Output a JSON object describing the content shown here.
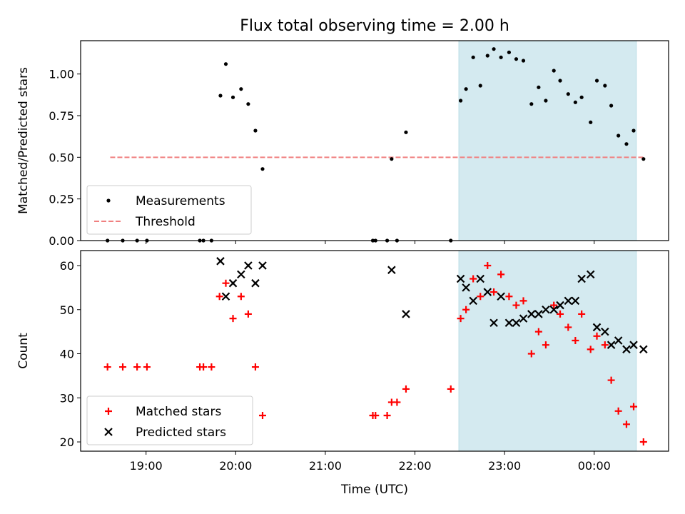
{
  "chart_data": {
    "title": "Flux total observing time = 2.00 h",
    "xlabel": "Time (UTC)",
    "x_tick_labels": [
      "19:00",
      "20:00",
      "21:00",
      "22:00",
      "23:00",
      "00:00"
    ],
    "x_tick_hours": [
      19,
      20,
      21,
      22,
      23,
      24
    ],
    "xlim_hours": [
      18.27,
      24.83
    ],
    "shaded_span_hours": [
      22.49,
      24.47
    ],
    "shade_color": "#d4eaf0",
    "panels": [
      {
        "type": "scatter",
        "ylabel": "Matched/Predicted stars",
        "ylim": [
          0.0,
          1.2
        ],
        "yticks": [
          0.0,
          0.25,
          0.5,
          0.75,
          1.0
        ],
        "ytick_labels": [
          "0.00",
          "0.25",
          "0.50",
          "0.75",
          "1.00"
        ],
        "legend": {
          "position": "lower-left",
          "measurements_label": "Measurements",
          "threshold_label": "Threshold"
        },
        "threshold": {
          "value": 0.5,
          "x_start_hours": 18.6,
          "x_end_hours": 24.55,
          "color": "#f08080"
        },
        "series": [
          {
            "name": "Measurements",
            "marker": "dot",
            "color": "#000000",
            "x_hours": [
              18.57,
              18.74,
              18.9,
              19.01,
              19.6,
              19.64,
              19.73,
              19.83,
              19.89,
              19.97,
              20.06,
              20.14,
              20.22,
              20.3,
              21.53,
              21.56,
              21.69,
              21.74,
              21.8,
              21.9,
              22.4,
              22.51,
              22.57,
              22.65,
              22.73,
              22.81,
              22.88,
              22.96,
              23.05,
              23.13,
              23.21,
              23.3,
              23.38,
              23.46,
              23.55,
              23.62,
              23.71,
              23.79,
              23.86,
              23.96,
              24.03,
              24.12,
              24.19,
              24.27,
              24.36,
              24.44,
              24.55
            ],
            "y": [
              0.0,
              0.0,
              0.0,
              0.0,
              0.0,
              0.0,
              0.0,
              0.87,
              1.06,
              0.86,
              0.91,
              0.82,
              0.66,
              0.43,
              0.0,
              0.0,
              0.0,
              0.49,
              0.0,
              0.65,
              0.0,
              0.84,
              0.91,
              1.1,
              0.93,
              1.11,
              1.15,
              1.1,
              1.13,
              1.09,
              1.08,
              0.82,
              0.92,
              0.84,
              1.02,
              0.96,
              0.88,
              0.83,
              0.86,
              0.71,
              0.96,
              0.93,
              0.81,
              0.63,
              0.58,
              0.66,
              0.49
            ]
          }
        ]
      },
      {
        "type": "scatter",
        "ylabel": "Count",
        "ylim": [
          17.9,
          63.4
        ],
        "yticks": [
          20,
          30,
          40,
          50,
          60
        ],
        "ytick_labels": [
          "20",
          "30",
          "40",
          "50",
          "60"
        ],
        "legend": {
          "position": "lower-left",
          "matched_label": "Matched stars",
          "predicted_label": "Predicted stars"
        },
        "series": [
          {
            "name": "Matched stars",
            "marker": "plus",
            "color": "#ff0000",
            "x_hours": [
              18.57,
              18.74,
              18.9,
              19.01,
              19.6,
              19.64,
              19.73,
              19.82,
              19.89,
              19.97,
              20.06,
              20.14,
              20.22,
              20.3,
              21.53,
              21.56,
              21.69,
              21.74,
              21.8,
              21.9,
              22.4,
              22.51,
              22.57,
              22.65,
              22.73,
              22.81,
              22.88,
              22.96,
              23.05,
              23.13,
              23.21,
              23.3,
              23.38,
              23.46,
              23.55,
              23.62,
              23.71,
              23.79,
              23.86,
              23.96,
              24.03,
              24.12,
              24.19,
              24.27,
              24.36,
              24.44,
              24.55
            ],
            "y": [
              37,
              37,
              37,
              37,
              37,
              37,
              37,
              53,
              56,
              48,
              53,
              49,
              37,
              26,
              26,
              26,
              26,
              29,
              29,
              32,
              32,
              48,
              50,
              57,
              53,
              60,
              54,
              58,
              53,
              51,
              52,
              40,
              45,
              42,
              51,
              49,
              46,
              43,
              49,
              41,
              44,
              42,
              34,
              27,
              24,
              28,
              20
            ]
          },
          {
            "name": "Predicted stars",
            "marker": "x",
            "color": "#000000",
            "x_hours": [
              19.83,
              19.89,
              19.97,
              20.06,
              20.14,
              20.22,
              20.3,
              21.74,
              21.9,
              22.51,
              22.57,
              22.65,
              22.73,
              22.81,
              22.88,
              22.96,
              23.05,
              23.13,
              23.21,
              23.3,
              23.38,
              23.46,
              23.55,
              23.62,
              23.71,
              23.79,
              23.86,
              23.96,
              24.03,
              24.12,
              24.19,
              24.27,
              24.36,
              24.44,
              24.55
            ],
            "y": [
              61,
              53,
              56,
              58,
              60,
              56,
              60,
              59,
              49,
              57,
              55,
              52,
              57,
              54,
              47,
              53,
              47,
              47,
              48,
              49,
              49,
              50,
              50,
              51,
              52,
              52,
              57,
              58,
              46,
              45,
              42,
              43,
              41,
              42,
              41
            ]
          }
        ]
      }
    ]
  }
}
